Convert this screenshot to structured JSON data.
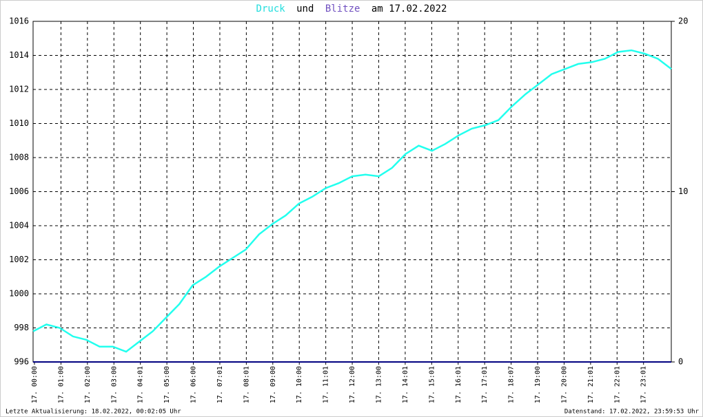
{
  "chart_data": {
    "type": "line",
    "title": {
      "parts": [
        "Druck",
        "und",
        "Blitze",
        "am 17.02.2022"
      ]
    },
    "x": [
      "17. 00:00",
      "17. 00:30",
      "17. 01:00",
      "17. 01:30",
      "17. 02:00",
      "17. 02:30",
      "17. 03:00",
      "17. 03:30",
      "17. 04:00",
      "17. 04:30",
      "17. 05:00",
      "17. 05:30",
      "17. 06:00",
      "17. 06:30",
      "17. 07:00",
      "17. 07:30",
      "17. 08:00",
      "17. 08:30",
      "17. 09:00",
      "17. 09:30",
      "17. 10:00",
      "17. 10:30",
      "17. 11:00",
      "17. 11:30",
      "17. 12:00",
      "17. 12:30",
      "17. 13:00",
      "17. 13:30",
      "17. 14:00",
      "17. 14:30",
      "17. 15:00",
      "17. 15:30",
      "17. 16:00",
      "17. 16:30",
      "17. 17:00",
      "17. 17:30",
      "17. 18:00",
      "17. 18:30",
      "17. 19:00",
      "17. 19:30",
      "17. 20:00",
      "17. 20:30",
      "17. 21:00",
      "17. 21:30",
      "17. 22:00",
      "17. 22:30",
      "17. 23:00",
      "17. 23:30",
      "17. 23:59"
    ],
    "series": [
      {
        "name": "Druck",
        "color": "#22ffee",
        "values": [
          997.8,
          998.2,
          998.0,
          997.5,
          997.3,
          996.9,
          996.9,
          996.6,
          997.2,
          997.8,
          998.6,
          999.4,
          1000.5,
          1001.0,
          1001.6,
          1002.1,
          1002.6,
          1003.5,
          1004.1,
          1004.6,
          1005.3,
          1005.7,
          1006.2,
          1006.5,
          1006.9,
          1007.0,
          1006.9,
          1007.4,
          1008.2,
          1008.7,
          1008.4,
          1008.8,
          1009.3,
          1009.7,
          1009.9,
          1010.2,
          1011.0,
          1011.7,
          1012.3,
          1012.9,
          1013.2,
          1013.5,
          1013.6,
          1013.8,
          1014.2,
          1014.3,
          1014.1,
          1013.8,
          1013.2
        ]
      },
      {
        "name": "Blitze",
        "color": "#000080",
        "axis": "y2",
        "values": [
          0,
          0,
          0,
          0,
          0,
          0,
          0,
          0,
          0,
          0,
          0,
          0,
          0,
          0,
          0,
          0,
          0,
          0,
          0,
          0,
          0,
          0,
          0,
          0,
          0,
          0,
          0,
          0,
          0,
          0,
          0,
          0,
          0,
          0,
          0,
          0,
          0,
          0,
          0,
          0,
          0,
          0,
          0,
          0,
          0,
          0,
          0,
          0,
          0
        ]
      }
    ],
    "xticks": [
      "17. 00:00",
      "17. 01:00",
      "17. 02:00",
      "17. 03:00",
      "17. 04:01",
      "17. 05:00",
      "17. 06:00",
      "17. 07:01",
      "17. 08:01",
      "17. 09:00",
      "17. 10:00",
      "17. 11:01",
      "17. 12:00",
      "17. 13:00",
      "17. 14:01",
      "17. 15:01",
      "17. 16:01",
      "17. 17:01",
      "17. 18:07",
      "17. 19:00",
      "17. 20:00",
      "17. 21:01",
      "17. 22:01",
      "17. 23:01"
    ],
    "ylim": [
      996,
      1016
    ],
    "yticks": [
      996,
      998,
      1000,
      1002,
      1004,
      1006,
      1008,
      1010,
      1012,
      1014,
      1016
    ],
    "y2lim": [
      0,
      20
    ],
    "y2ticks": [
      0,
      10,
      20
    ],
    "grid": true,
    "footer_left": "Letzte Aktualisierung: 18.02.2022, 00:02:05 Uhr",
    "footer_right": "Datenstand: 17.02.2022, 23:59:53 Uhr"
  }
}
